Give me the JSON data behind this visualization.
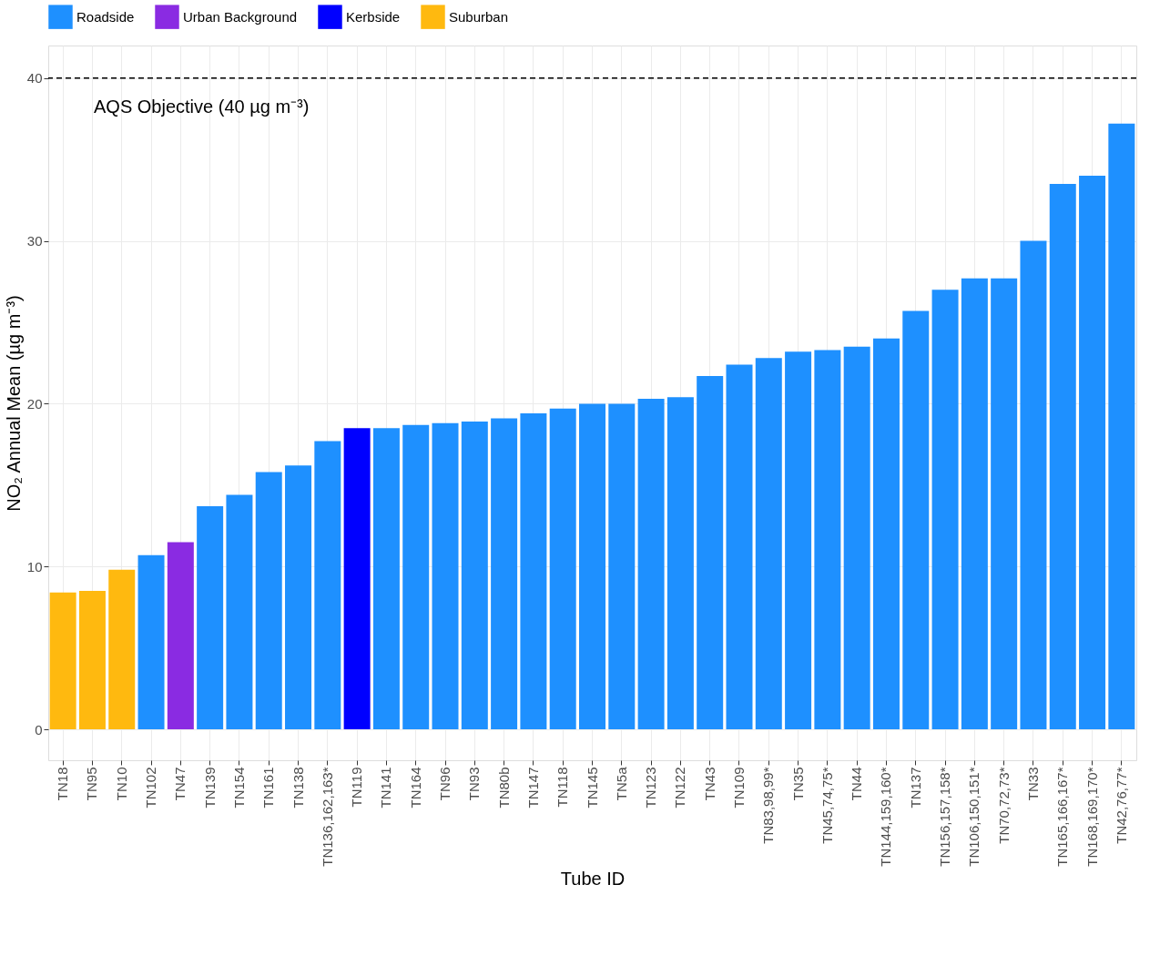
{
  "chart_data": {
    "type": "bar",
    "xlabel": "Tube ID",
    "ylabel": "NO₂ Annual Mean (µg m⁻³)",
    "categories": [
      "TN18",
      "TN95",
      "TN10",
      "TN102",
      "TN47",
      "TN139",
      "TN154",
      "TN161",
      "TN138",
      "TN136,162,163*",
      "TN119",
      "TN141",
      "TN164",
      "TN96",
      "TN93",
      "TN80b",
      "TN147",
      "TN118",
      "TN145",
      "TN5a",
      "TN123",
      "TN122",
      "TN43",
      "TN109",
      "TN83,98,99*",
      "TN35",
      "TN45,74,75*",
      "TN44",
      "TN144,159,160*",
      "TN137",
      "TN156,157,158*",
      "TN106,150,151*",
      "TN70,72,73*",
      "TN33",
      "TN165,166,167*",
      "TN168,169,170*",
      "TN42,76,77*"
    ],
    "series": [
      {
        "name": "Roadside",
        "color": "#1e90ff",
        "values": [
          null,
          null,
          null,
          10.7,
          null,
          13.7,
          14.4,
          15.8,
          16.2,
          17.7,
          null,
          18.5,
          18.7,
          18.8,
          18.9,
          19.1,
          19.4,
          19.7,
          20.0,
          20.0,
          20.3,
          20.4,
          21.7,
          22.4,
          22.8,
          23.2,
          23.3,
          23.5,
          24.0,
          25.7,
          27.0,
          27.7,
          27.7,
          30.0,
          33.5,
          34.0,
          37.2
        ]
      },
      {
        "name": "Urban Background",
        "color": "#8a2be2",
        "values": [
          null,
          null,
          null,
          null,
          11.5,
          null,
          null,
          null,
          null,
          null,
          null,
          null,
          null,
          null,
          null,
          null,
          null,
          null,
          null,
          null,
          null,
          null,
          null,
          null,
          null,
          null,
          null,
          null,
          null,
          null,
          null,
          null,
          null,
          null,
          null,
          null,
          null
        ]
      },
      {
        "name": "Kerbside",
        "color": "#0000ff",
        "values": [
          null,
          null,
          null,
          null,
          null,
          null,
          null,
          null,
          null,
          null,
          18.5,
          null,
          null,
          null,
          null,
          null,
          null,
          null,
          null,
          null,
          null,
          null,
          null,
          null,
          null,
          null,
          null,
          null,
          null,
          null,
          null,
          null,
          null,
          null,
          null,
          null,
          null
        ]
      },
      {
        "name": "Suburban",
        "color": "#ffb90f",
        "values": [
          8.4,
          8.5,
          9.8,
          null,
          null,
          null,
          null,
          null,
          null,
          null,
          null,
          null,
          null,
          null,
          null,
          null,
          null,
          null,
          null,
          null,
          null,
          null,
          null,
          null,
          null,
          null,
          null,
          null,
          null,
          null,
          null,
          null,
          null,
          null,
          null,
          null,
          null
        ]
      }
    ],
    "ylim": [
      -1.9,
      42
    ],
    "yticks": [
      0,
      10,
      20,
      30,
      40
    ],
    "grid": true,
    "legend": "top",
    "ref_lines": [
      {
        "axis": "y",
        "value": 40,
        "label": "AQS Objective (40 µg m⁻³)",
        "color": "#000000",
        "line_style": "dashed"
      }
    ]
  }
}
